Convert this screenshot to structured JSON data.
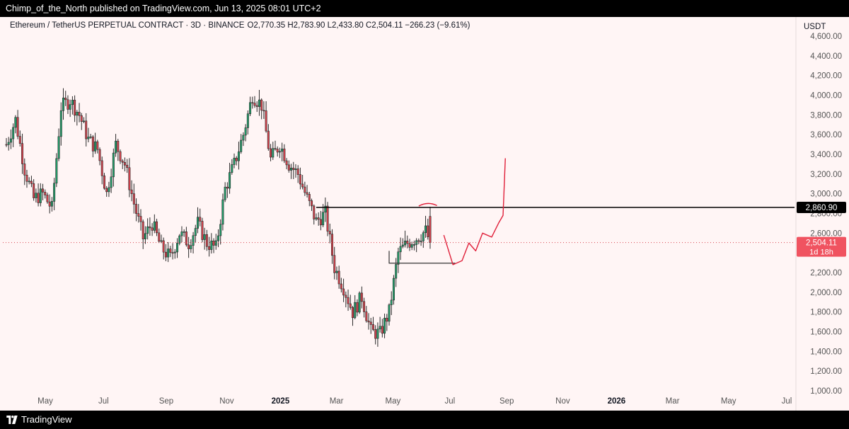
{
  "header": {
    "publisher": "Chimp_of_the_North published on TradingView.com, Jun 13, 2025 08:01 UTC+2"
  },
  "footer": {
    "brand": "TradingView"
  },
  "colors": {
    "up": "#22a06b",
    "down": "#d9434e",
    "background": "#fff5f5",
    "annotation": "#e0203a"
  },
  "chart_data": {
    "type": "candlestick",
    "title": "Ethereum / TetherUS PERPETUAL CONTRACT · 3D · BINANCE",
    "ohlc_label": "O2,770.35 H2,783.90 L2,433.80 C2,504.11 −266.23 (−9.61%)",
    "currency": "USDT",
    "y_ticks": [
      {
        "label": "4,600.00",
        "value": 4600
      },
      {
        "label": "4,400.00",
        "value": 4400
      },
      {
        "label": "4,200.00",
        "value": 4200
      },
      {
        "label": "4,000.00",
        "value": 4000
      },
      {
        "label": "3,800.00",
        "value": 3800
      },
      {
        "label": "3,600.00",
        "value": 3600
      },
      {
        "label": "3,400.00",
        "value": 3400
      },
      {
        "label": "3,200.00",
        "value": 3200
      },
      {
        "label": "3,000.00",
        "value": 3000
      },
      {
        "label": "2,800.00",
        "value": 2800
      },
      {
        "label": "2,600.00",
        "value": 2600
      },
      {
        "label": "2,400.00",
        "value": 2400
      },
      {
        "label": "2,200.00",
        "value": 2200
      },
      {
        "label": "2,000.00",
        "value": 2000
      },
      {
        "label": "1,800.00",
        "value": 1800
      },
      {
        "label": "1,600.00",
        "value": 1600
      },
      {
        "label": "1,400.00",
        "value": 1400
      },
      {
        "label": "1,200.00",
        "value": 1200
      },
      {
        "label": "1,000.00",
        "value": 1000
      }
    ],
    "x_ticks": [
      {
        "label": "May",
        "pos": 0.05,
        "bold": false
      },
      {
        "label": "Jul",
        "pos": 0.18,
        "bold": false
      },
      {
        "label": "Sep",
        "pos": 0.32,
        "bold": false
      },
      {
        "label": "Nov",
        "pos": 0.455,
        "bold": false
      },
      {
        "label": "2025",
        "pos": 0.575,
        "bold": true
      },
      {
        "label": "Mar",
        "pos": 0.7,
        "bold": false
      },
      {
        "label": "May",
        "pos": 0.826,
        "bold": false
      },
      {
        "label": "Jul",
        "pos": 0.953,
        "bold": false
      },
      {
        "label": "Sep",
        "pos": 1.08,
        "bold": false
      },
      {
        "label": "Nov",
        "pos": 1.205,
        "bold": false
      },
      {
        "label": "2026",
        "pos": 1.325,
        "bold": true
      },
      {
        "label": "Mar",
        "pos": 1.45,
        "bold": false
      },
      {
        "label": "May",
        "pos": 1.575,
        "bold": false
      },
      {
        "label": "Jul",
        "pos": 1.705,
        "bold": false
      }
    ],
    "anchors": [
      [
        0,
        3500
      ],
      [
        4,
        3750
      ],
      [
        8,
        3250
      ],
      [
        12,
        2950
      ],
      [
        16,
        3000
      ],
      [
        20,
        2850
      ],
      [
        24,
        3880
      ],
      [
        28,
        3950
      ],
      [
        32,
        3800
      ],
      [
        36,
        3550
      ],
      [
        40,
        3450
      ],
      [
        44,
        3000
      ],
      [
        48,
        3500
      ],
      [
        52,
        3300
      ],
      [
        56,
        2900
      ],
      [
        60,
        2550
      ],
      [
        64,
        2700
      ],
      [
        68,
        2450
      ],
      [
        72,
        2350
      ],
      [
        76,
        2600
      ],
      [
        80,
        2500
      ],
      [
        84,
        2700
      ],
      [
        88,
        2500
      ],
      [
        92,
        2450
      ],
      [
        96,
        3050
      ],
      [
        100,
        3300
      ],
      [
        104,
        3600
      ],
      [
        108,
        4000
      ],
      [
        112,
        3900
      ],
      [
        116,
        3350
      ],
      [
        120,
        3500
      ],
      [
        124,
        3300
      ],
      [
        128,
        3200
      ],
      [
        132,
        2950
      ],
      [
        136,
        2720
      ],
      [
        140,
        2800
      ],
      [
        144,
        2250
      ],
      [
        148,
        2050
      ],
      [
        152,
        1800
      ],
      [
        156,
        1950
      ],
      [
        160,
        1600
      ],
      [
        164,
        1580
      ],
      [
        168,
        1800
      ],
      [
        172,
        2400
      ],
      [
        176,
        2500
      ],
      [
        180,
        2550
      ],
      [
        184,
        2620
      ],
      [
        186,
        2504
      ]
    ],
    "x_range": [
      0,
      345
    ],
    "last_close": 2504.11,
    "last_price_label": "2,504.11",
    "countdown_label": "1d 18h",
    "resistance_level": 2860.9,
    "resistance_label": "2,860.90",
    "resistance_start": 136,
    "support_level": 2295,
    "support_range": [
      168,
      197
    ],
    "projection": [
      [
        192,
        2580
      ],
      [
        196,
        2280
      ],
      [
        200,
        2320
      ],
      [
        203,
        2500
      ],
      [
        206,
        2420
      ],
      [
        209,
        2600
      ],
      [
        213,
        2560
      ],
      [
        216,
        2700
      ],
      [
        218,
        2780
      ],
      [
        219,
        3360
      ]
    ],
    "peak_arc": [
      [
        181,
        2875
      ],
      [
        185,
        2925
      ],
      [
        189,
        2880
      ]
    ],
    "ylim": [
      1000,
      4650
    ]
  }
}
